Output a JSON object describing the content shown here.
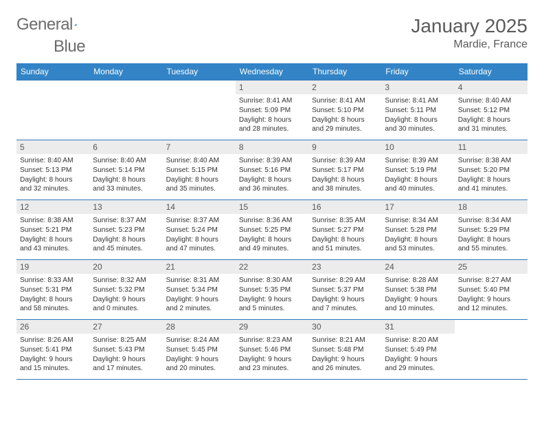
{
  "brand": {
    "word1": "General",
    "word2": "Blue"
  },
  "title": "January 2025",
  "location": "Mardie, France",
  "colors": {
    "header_bg": "#3284c6",
    "rule": "#2f76b8",
    "daynum_bg": "#ececec",
    "text": "#333333",
    "muted": "#5a5a5a",
    "white": "#ffffff"
  },
  "dow": [
    "Sunday",
    "Monday",
    "Tuesday",
    "Wednesday",
    "Thursday",
    "Friday",
    "Saturday"
  ],
  "weeks": [
    [
      null,
      null,
      null,
      {
        "n": "1",
        "sr": "8:41 AM",
        "ss": "5:09 PM",
        "dh": "8",
        "dm": "28"
      },
      {
        "n": "2",
        "sr": "8:41 AM",
        "ss": "5:10 PM",
        "dh": "8",
        "dm": "29"
      },
      {
        "n": "3",
        "sr": "8:41 AM",
        "ss": "5:11 PM",
        "dh": "8",
        "dm": "30"
      },
      {
        "n": "4",
        "sr": "8:40 AM",
        "ss": "5:12 PM",
        "dh": "8",
        "dm": "31"
      }
    ],
    [
      {
        "n": "5",
        "sr": "8:40 AM",
        "ss": "5:13 PM",
        "dh": "8",
        "dm": "32"
      },
      {
        "n": "6",
        "sr": "8:40 AM",
        "ss": "5:14 PM",
        "dh": "8",
        "dm": "33"
      },
      {
        "n": "7",
        "sr": "8:40 AM",
        "ss": "5:15 PM",
        "dh": "8",
        "dm": "35"
      },
      {
        "n": "8",
        "sr": "8:39 AM",
        "ss": "5:16 PM",
        "dh": "8",
        "dm": "36"
      },
      {
        "n": "9",
        "sr": "8:39 AM",
        "ss": "5:17 PM",
        "dh": "8",
        "dm": "38"
      },
      {
        "n": "10",
        "sr": "8:39 AM",
        "ss": "5:19 PM",
        "dh": "8",
        "dm": "40"
      },
      {
        "n": "11",
        "sr": "8:38 AM",
        "ss": "5:20 PM",
        "dh": "8",
        "dm": "41"
      }
    ],
    [
      {
        "n": "12",
        "sr": "8:38 AM",
        "ss": "5:21 PM",
        "dh": "8",
        "dm": "43"
      },
      {
        "n": "13",
        "sr": "8:37 AM",
        "ss": "5:23 PM",
        "dh": "8",
        "dm": "45"
      },
      {
        "n": "14",
        "sr": "8:37 AM",
        "ss": "5:24 PM",
        "dh": "8",
        "dm": "47"
      },
      {
        "n": "15",
        "sr": "8:36 AM",
        "ss": "5:25 PM",
        "dh": "8",
        "dm": "49"
      },
      {
        "n": "16",
        "sr": "8:35 AM",
        "ss": "5:27 PM",
        "dh": "8",
        "dm": "51"
      },
      {
        "n": "17",
        "sr": "8:34 AM",
        "ss": "5:28 PM",
        "dh": "8",
        "dm": "53"
      },
      {
        "n": "18",
        "sr": "8:34 AM",
        "ss": "5:29 PM",
        "dh": "8",
        "dm": "55"
      }
    ],
    [
      {
        "n": "19",
        "sr": "8:33 AM",
        "ss": "5:31 PM",
        "dh": "8",
        "dm": "58"
      },
      {
        "n": "20",
        "sr": "8:32 AM",
        "ss": "5:32 PM",
        "dh": "9",
        "dm": "0"
      },
      {
        "n": "21",
        "sr": "8:31 AM",
        "ss": "5:34 PM",
        "dh": "9",
        "dm": "2"
      },
      {
        "n": "22",
        "sr": "8:30 AM",
        "ss": "5:35 PM",
        "dh": "9",
        "dm": "5"
      },
      {
        "n": "23",
        "sr": "8:29 AM",
        "ss": "5:37 PM",
        "dh": "9",
        "dm": "7"
      },
      {
        "n": "24",
        "sr": "8:28 AM",
        "ss": "5:38 PM",
        "dh": "9",
        "dm": "10"
      },
      {
        "n": "25",
        "sr": "8:27 AM",
        "ss": "5:40 PM",
        "dh": "9",
        "dm": "12"
      }
    ],
    [
      {
        "n": "26",
        "sr": "8:26 AM",
        "ss": "5:41 PM",
        "dh": "9",
        "dm": "15"
      },
      {
        "n": "27",
        "sr": "8:25 AM",
        "ss": "5:43 PM",
        "dh": "9",
        "dm": "17"
      },
      {
        "n": "28",
        "sr": "8:24 AM",
        "ss": "5:45 PM",
        "dh": "9",
        "dm": "20"
      },
      {
        "n": "29",
        "sr": "8:23 AM",
        "ss": "5:46 PM",
        "dh": "9",
        "dm": "23"
      },
      {
        "n": "30",
        "sr": "8:21 AM",
        "ss": "5:48 PM",
        "dh": "9",
        "dm": "26"
      },
      {
        "n": "31",
        "sr": "8:20 AM",
        "ss": "5:49 PM",
        "dh": "9",
        "dm": "29"
      },
      null
    ]
  ],
  "labels": {
    "sunrise": "Sunrise:",
    "sunset": "Sunset:",
    "daylight": "Daylight:",
    "hours": "hours",
    "and": "and",
    "minutes": "minutes."
  }
}
